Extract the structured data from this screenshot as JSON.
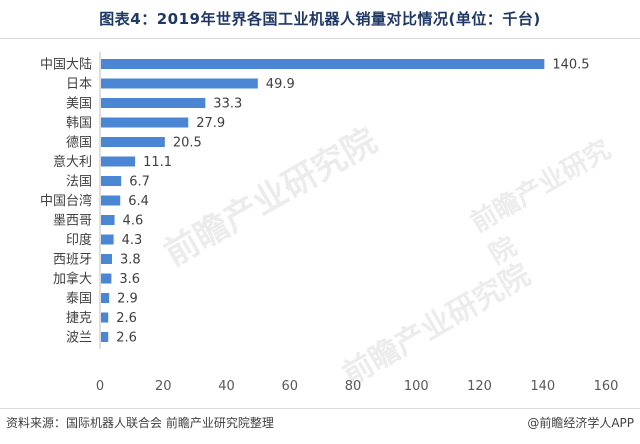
{
  "title": "图表4：2019年世界各国工业机器人销量对比情况(单位：千台)",
  "footer": {
    "source": "资料来源：国际机器人联合会  前瞻产业研究院整理",
    "credit": "@前瞻经济学人APP"
  },
  "watermark": "前瞻产业研究院",
  "colors": {
    "bar": "#4a86d4",
    "title": "#1f3864"
  },
  "chart_data": {
    "type": "bar",
    "orientation": "horizontal",
    "title": "图表4：2019年世界各国工业机器人销量对比情况(单位：千台)",
    "categories": [
      "中国大陆",
      "日本",
      "美国",
      "韩国",
      "德国",
      "意大利",
      "法国",
      "中国台湾",
      "墨西哥",
      "印度",
      "西班牙",
      "加拿大",
      "泰国",
      "捷克",
      "波兰"
    ],
    "values": [
      140.5,
      49.9,
      33.3,
      27.9,
      20.5,
      11.1,
      6.7,
      6.4,
      4.6,
      4.3,
      3.8,
      3.6,
      2.9,
      2.6,
      2.6
    ],
    "xlim": [
      0,
      160
    ],
    "xticks": [
      0,
      20,
      40,
      60,
      80,
      100,
      120,
      140,
      160
    ],
    "grid": false,
    "legend": false
  }
}
